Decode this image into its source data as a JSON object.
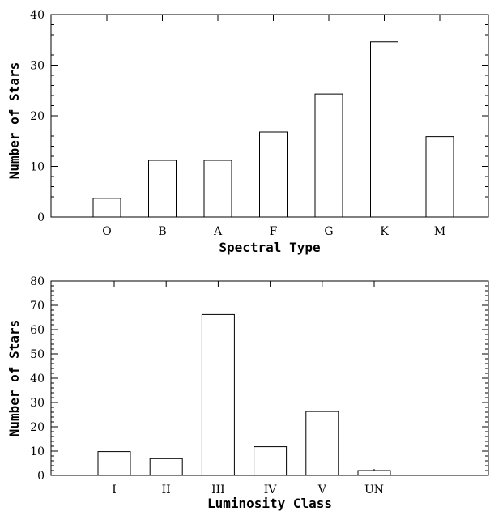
{
  "chart_data": [
    {
      "type": "bar",
      "categories": [
        "O",
        "B",
        "A",
        "F",
        "G",
        "K",
        "M"
      ],
      "values": [
        3.7,
        11.2,
        11.2,
        16.8,
        24.3,
        34.6,
        15.9
      ],
      "xlabel": "Spectral Type",
      "ylabel": "Number of Stars",
      "ylim": [
        0,
        40
      ],
      "yticks": [
        0,
        10,
        20,
        30,
        40
      ],
      "grid": false
    },
    {
      "type": "bar",
      "categories": [
        "I",
        "II",
        "III",
        "IV",
        "V",
        "UN"
      ],
      "values": [
        9.8,
        6.9,
        66.2,
        11.8,
        26.3,
        2.0
      ],
      "xlabel": "Luminosity Class",
      "ylabel": "Number of Stars",
      "ylim": [
        0,
        80
      ],
      "yticks": [
        0,
        10,
        20,
        30,
        40,
        50,
        60,
        70,
        80
      ],
      "grid": false
    }
  ]
}
